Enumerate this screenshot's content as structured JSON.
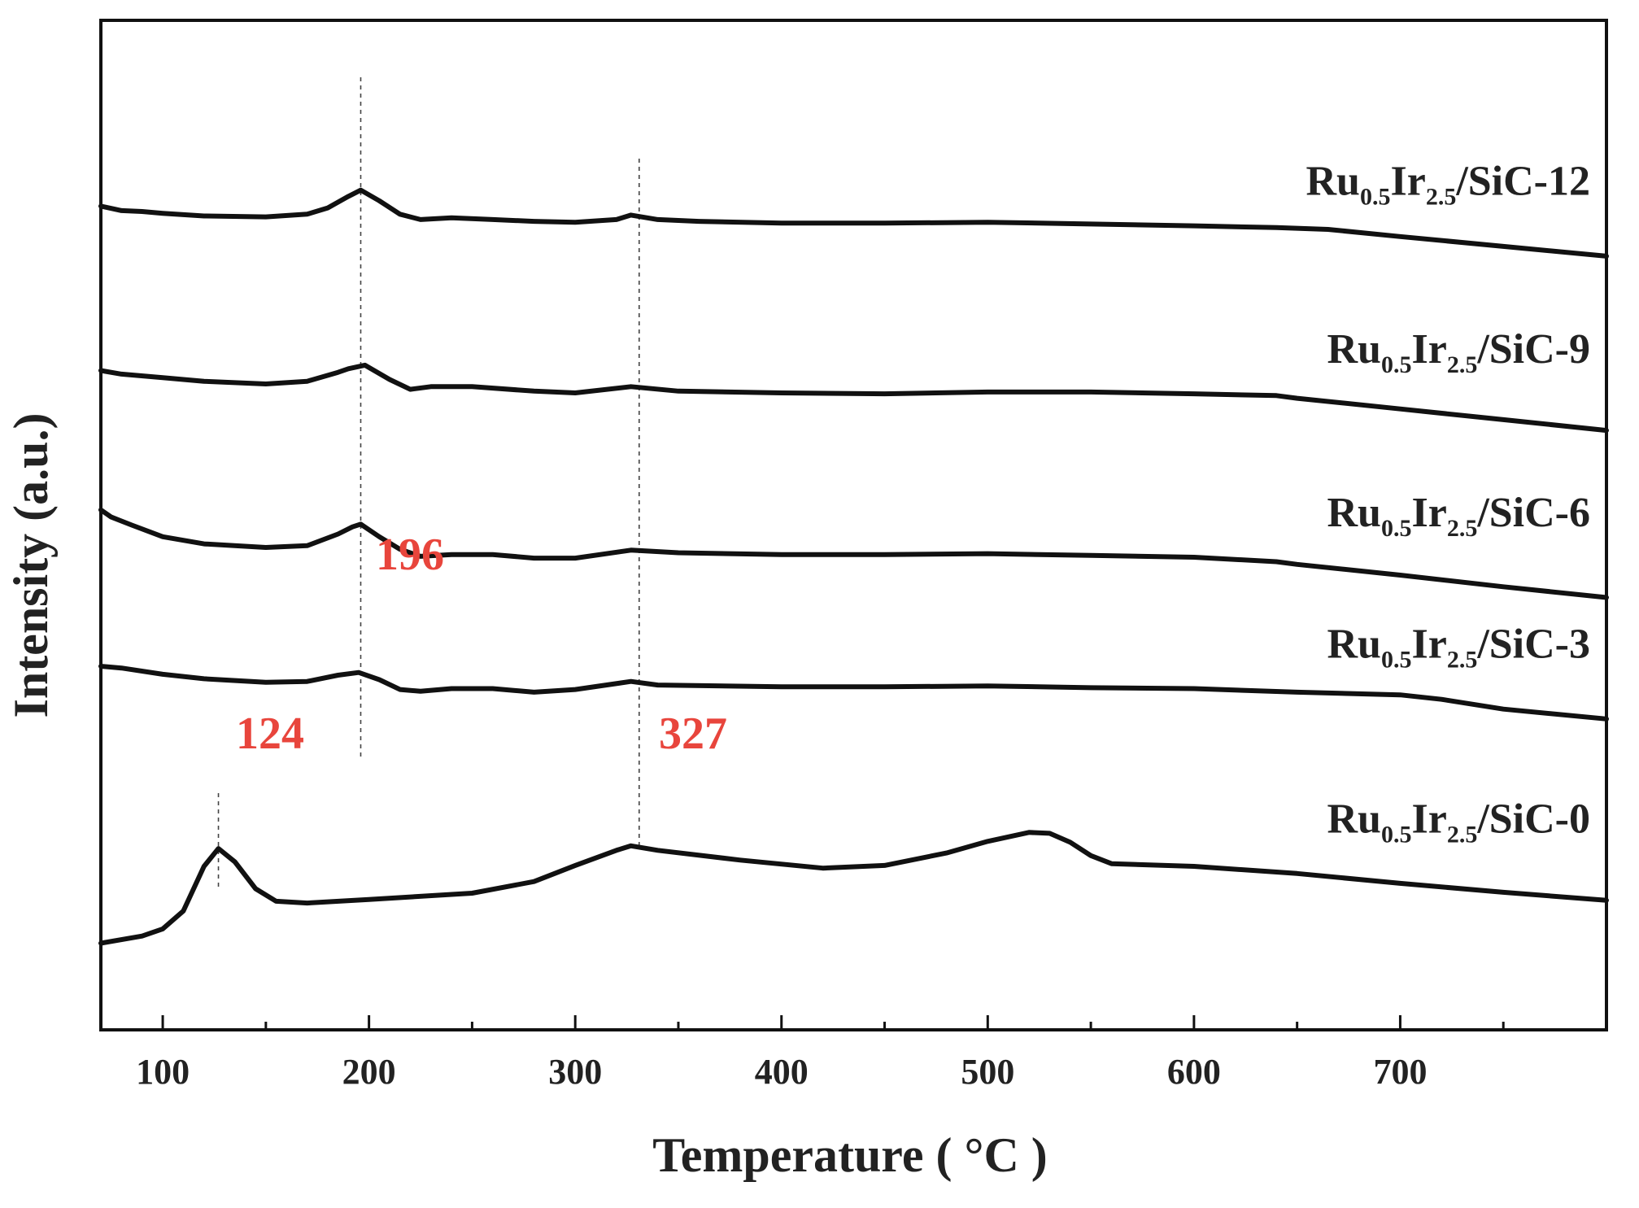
{
  "chart_data": {
    "type": "line",
    "title": "",
    "xlabel": "Temperature ( °C )",
    "ylabel": "Intensity (a.u.)",
    "xlim": [
      70,
      800
    ],
    "x_ticks": [
      100,
      200,
      300,
      400,
      500,
      600,
      700
    ],
    "y_ticks": [],
    "grid": false,
    "legend": "series labels placed at right of each trace",
    "series": [
      {
        "name": "Ru0.5Ir2.5/SiC-12",
        "label_main": "Ru",
        "label_sub1": "0.5",
        "label_mid": "Ir",
        "label_sub2": "2.5",
        "label_tail": "/SiC-12",
        "x": [
          70,
          80,
          90,
          100,
          120,
          150,
          170,
          180,
          190,
          196,
          205,
          215,
          225,
          240,
          260,
          280,
          300,
          320,
          327,
          340,
          360,
          400,
          450,
          500,
          550,
          600,
          640,
          665,
          700,
          750,
          800
        ],
        "y": [
          9.22,
          9.17,
          9.16,
          9.14,
          9.11,
          9.1,
          9.13,
          9.2,
          9.33,
          9.4,
          9.28,
          9.13,
          9.07,
          9.09,
          9.07,
          9.05,
          9.04,
          9.07,
          9.12,
          9.07,
          9.05,
          9.03,
          9.03,
          9.04,
          9.02,
          9.0,
          8.98,
          8.96,
          8.88,
          8.77,
          8.66
        ]
      },
      {
        "name": "Ru0.5Ir2.5/SiC-9",
        "label_main": "Ru",
        "label_sub1": "0.5",
        "label_mid": "Ir",
        "label_sub2": "2.5",
        "label_tail": "/SiC-9",
        "x": [
          70,
          80,
          100,
          120,
          150,
          170,
          185,
          190,
          198,
          210,
          220,
          230,
          250,
          280,
          300,
          327,
          350,
          400,
          450,
          500,
          550,
          600,
          640,
          650,
          700,
          750,
          800
        ],
        "y": [
          7.38,
          7.34,
          7.3,
          7.26,
          7.23,
          7.26,
          7.36,
          7.4,
          7.44,
          7.28,
          7.17,
          7.2,
          7.2,
          7.15,
          7.13,
          7.2,
          7.15,
          7.13,
          7.12,
          7.14,
          7.14,
          7.12,
          7.1,
          7.07,
          6.95,
          6.83,
          6.71
        ]
      },
      {
        "name": "Ru0.5Ir2.5/SiC-6",
        "label_main": "Ru",
        "label_sub1": "0.5",
        "label_mid": "Ir",
        "label_sub2": "2.5",
        "label_tail": "/SiC-6",
        "x": [
          70,
          75,
          85,
          100,
          120,
          150,
          170,
          185,
          192,
          196,
          205,
          215,
          225,
          240,
          260,
          280,
          300,
          327,
          350,
          400,
          450,
          500,
          550,
          600,
          640,
          650,
          700,
          750,
          800
        ],
        "y": [
          5.82,
          5.74,
          5.65,
          5.52,
          5.44,
          5.4,
          5.42,
          5.55,
          5.63,
          5.66,
          5.52,
          5.38,
          5.3,
          5.32,
          5.32,
          5.28,
          5.28,
          5.37,
          5.34,
          5.32,
          5.32,
          5.33,
          5.31,
          5.29,
          5.24,
          5.21,
          5.09,
          4.96,
          4.84
        ]
      },
      {
        "name": "Ru0.5Ir2.5/SiC-3",
        "label_main": "Ru",
        "label_sub1": "0.5",
        "label_mid": "Ir",
        "label_sub2": "2.5",
        "label_tail": "/SiC-3",
        "x": [
          70,
          80,
          100,
          120,
          150,
          170,
          185,
          195,
          205,
          215,
          225,
          240,
          260,
          280,
          300,
          327,
          340,
          400,
          450,
          500,
          550,
          600,
          650,
          700,
          720,
          750,
          800
        ],
        "y": [
          4.07,
          4.05,
          3.98,
          3.93,
          3.89,
          3.9,
          3.97,
          4.0,
          3.92,
          3.81,
          3.79,
          3.82,
          3.82,
          3.78,
          3.81,
          3.9,
          3.86,
          3.84,
          3.84,
          3.85,
          3.83,
          3.82,
          3.78,
          3.75,
          3.7,
          3.59,
          3.48
        ]
      },
      {
        "name": "Ru0.5Ir2.5/SiC-0",
        "label_main": "Ru",
        "label_sub1": "0.5",
        "label_mid": "Ir",
        "label_sub2": "2.5",
        "label_tail": "/SiC-0",
        "x": [
          70,
          90,
          100,
          110,
          120,
          127,
          135,
          145,
          155,
          170,
          200,
          250,
          280,
          300,
          320,
          327,
          340,
          380,
          420,
          450,
          480,
          500,
          520,
          530,
          540,
          550,
          560,
          600,
          650,
          700,
          750,
          800
        ],
        "y": [
          0.97,
          1.05,
          1.13,
          1.33,
          1.83,
          2.03,
          1.88,
          1.58,
          1.44,
          1.42,
          1.46,
          1.53,
          1.66,
          1.84,
          2.01,
          2.06,
          2.01,
          1.9,
          1.81,
          1.84,
          1.98,
          2.11,
          2.21,
          2.2,
          2.1,
          1.95,
          1.86,
          1.83,
          1.75,
          1.64,
          1.54,
          1.45
        ]
      }
    ],
    "annotations": [
      {
        "text": "124",
        "x": 127
      },
      {
        "text": "196",
        "x": 196
      },
      {
        "text": "327",
        "x": 331
      }
    ],
    "ylim": [
      0,
      11.3
    ]
  }
}
